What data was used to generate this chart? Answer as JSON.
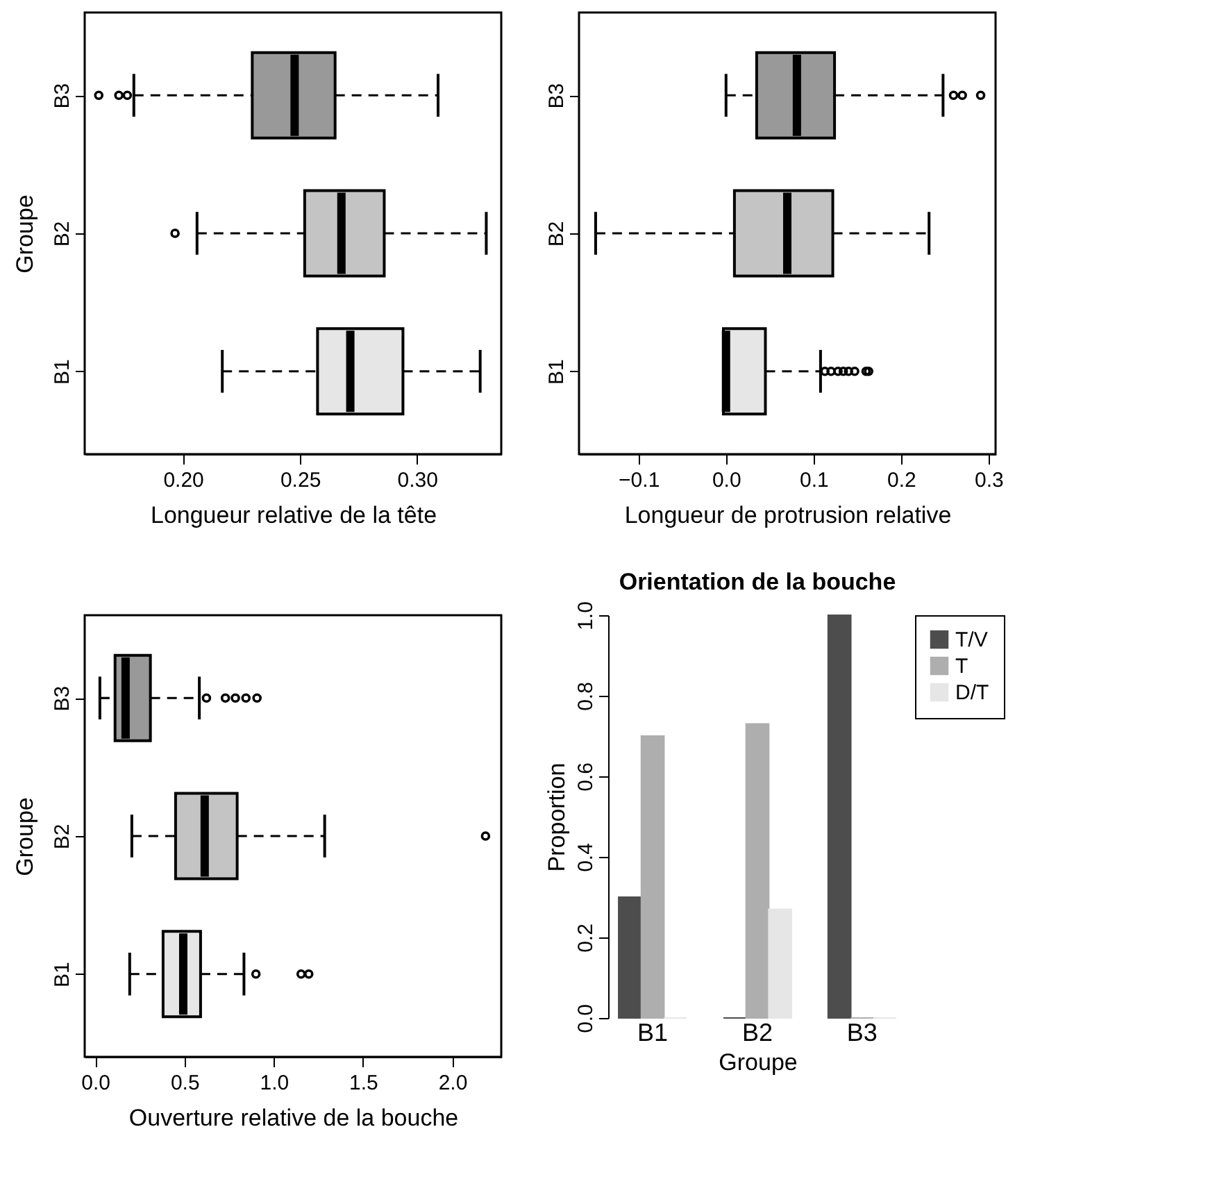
{
  "chart_data": [
    {
      "type": "box",
      "orientation": "horizontal",
      "categories": [
        "B3",
        "B2",
        "B1"
      ],
      "ylabel": "Groupe",
      "xlabel": "Longueur relative de la tête",
      "xlim": [
        0.158,
        0.336
      ],
      "xticks": [
        {
          "value": 0.2,
          "label": "0.20"
        },
        0.25,
        {
          "value": 0.3,
          "label": "0.30"
        }
      ],
      "grid": false,
      "colors": [
        "#999999",
        "#c4c4c4",
        "#e6e6e6"
      ],
      "boxes": [
        {
          "low": 0.179,
          "q1": 0.2296,
          "median": 0.2477,
          "q3": 0.265,
          "high": 0.309,
          "outliers": [
            0.164,
            0.1726,
            0.1762
          ]
        },
        {
          "low": 0.206,
          "q1": 0.252,
          "median": 0.2677,
          "q3": 0.286,
          "high": 0.3296,
          "outliers": [
            0.1966
          ]
        },
        {
          "low": 0.2168,
          "q1": 0.2575,
          "median": 0.2715,
          "q3": 0.294,
          "high": 0.327
        }
      ]
    },
    {
      "type": "box",
      "orientation": "horizontal",
      "categories": [
        "B3",
        "B2",
        "B1"
      ],
      "xlabel": "Longueur de protrusion relative",
      "xlim": [
        -0.168,
        0.308
      ],
      "xticks": [
        {
          "value": -0.1,
          "label": "−0.1"
        },
        {
          "value": 0,
          "label": "0.0"
        },
        0.1,
        0.2,
        0.3
      ],
      "grid": false,
      "colors": [
        "#999999",
        "#c4c4c4",
        "#e6e6e6"
      ],
      "boxes": [
        {
          "low": 0.0,
          "q1": 0.035,
          "median": 0.081,
          "q3": 0.124,
          "high": 0.248,
          "outliers": [
            0.26,
            0.27,
            0.291
          ]
        },
        {
          "low": -0.149,
          "q1": 0.0096,
          "median": 0.07,
          "q3": 0.122,
          "high": 0.232
        },
        {
          "low": -0.003,
          "q1": -0.003,
          "median": 0.0,
          "q3": 0.045,
          "high": 0.108,
          "outliers": [
            0.113,
            0.12,
            0.128,
            0.134,
            0.14,
            0.147,
            0.16,
            0.163
          ]
        }
      ]
    },
    {
      "type": "box",
      "orientation": "horizontal",
      "categories": [
        "B3",
        "B2",
        "B1"
      ],
      "ylabel": "Groupe",
      "xlabel": "Ouverture relative de la bouche",
      "xlim": [
        -0.059,
        2.274
      ],
      "xticks": [
        {
          "value": 0,
          "label": "0.0"
        },
        0.5,
        {
          "value": 1,
          "label": "1.0"
        },
        1.5,
        {
          "value": 2,
          "label": "2.0"
        }
      ],
      "grid": false,
      "colors": [
        "#999999",
        "#c4c4c4",
        "#e6e6e6"
      ],
      "boxes": [
        {
          "low": 0.026,
          "q1": 0.111,
          "median": 0.17,
          "q3": 0.309,
          "high": 0.583,
          "outliers": [
            0.623,
            0.729,
            0.785,
            0.844,
            0.906
          ]
        },
        {
          "low": 0.205,
          "q1": 0.45,
          "median": 0.613,
          "q3": 0.795,
          "high": 1.285,
          "outliers": [
            2.186
          ]
        },
        {
          "low": 0.193,
          "q1": 0.38,
          "median": 0.493,
          "q3": 0.59,
          "high": 0.833,
          "outliers": [
            0.9,
            1.153,
            1.196
          ]
        }
      ]
    },
    {
      "type": "bar",
      "title": "Orientation de la bouche",
      "categories": [
        "B1",
        "B2",
        "B3"
      ],
      "xlabel": "Groupe",
      "ylabel": "Proportion",
      "ylim": [
        0,
        1
      ],
      "yticks": [
        {
          "value": 0,
          "label": "0.0"
        },
        0.2,
        0.4,
        0.6,
        0.8,
        {
          "value": 1,
          "label": "1.0"
        }
      ],
      "grid": false,
      "legend": "right",
      "series": [
        {
          "name": "T/V",
          "color": "#4d4d4d",
          "values": [
            0.3,
            0,
            1.0
          ]
        },
        {
          "name": "T",
          "color": "#aeaeae",
          "values": [
            0.7,
            0.73,
            0
          ]
        },
        {
          "name": "D/T",
          "color": "#e6e6e6",
          "values": [
            0,
            0.27,
            0
          ]
        }
      ]
    }
  ]
}
